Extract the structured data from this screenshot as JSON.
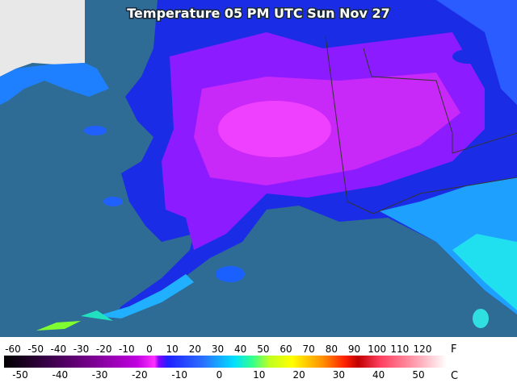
{
  "title": "Temperature 05 PM UTC Sun Nov 27",
  "legend": {
    "fahrenheit": {
      "unit": "F",
      "ticks": [
        -60,
        -50,
        -40,
        -30,
        -20,
        -10,
        0,
        10,
        20,
        30,
        40,
        50,
        60,
        70,
        80,
        90,
        100,
        110,
        120
      ]
    },
    "celsius": {
      "unit": "C",
      "ticks": [
        -50,
        -40,
        -30,
        -20,
        -10,
        0,
        10,
        20,
        30,
        40,
        50
      ]
    }
  }
}
